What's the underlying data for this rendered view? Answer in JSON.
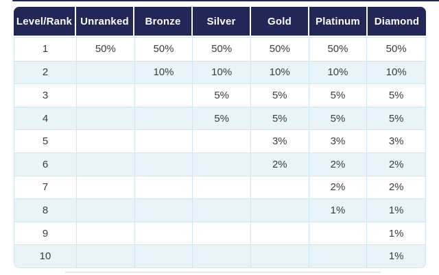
{
  "colors": {
    "header_bg": "#212757",
    "header_text": "#ffffff",
    "row_even_bg": "#ffffff",
    "row_odd_bg": "#e9f4f9",
    "grid_border": "#cde6f1",
    "cell_text": "#3b3b3b",
    "top_strip": "#212757",
    "bottom_artifact": "#e3e3e3"
  },
  "chart_data": {
    "type": "table",
    "columns": [
      "Level/Rank",
      "Unranked",
      "Bronze",
      "Silver",
      "Gold",
      "Platinum",
      "Diamond"
    ],
    "rows": [
      [
        "1",
        "50%",
        "50%",
        "50%",
        "50%",
        "50%",
        "50%"
      ],
      [
        "2",
        "",
        "10%",
        "10%",
        "10%",
        "10%",
        "10%"
      ],
      [
        "3",
        "",
        "",
        "5%",
        "5%",
        "5%",
        "5%"
      ],
      [
        "4",
        "",
        "",
        "5%",
        "5%",
        "5%",
        "5%"
      ],
      [
        "5",
        "",
        "",
        "",
        "3%",
        "3%",
        "3%"
      ],
      [
        "6",
        "",
        "",
        "",
        "2%",
        "2%",
        "2%"
      ],
      [
        "7",
        "",
        "",
        "",
        "",
        "2%",
        "2%"
      ],
      [
        "8",
        "",
        "",
        "",
        "",
        "1%",
        "1%"
      ],
      [
        "9",
        "",
        "",
        "",
        "",
        "",
        "1%"
      ],
      [
        "10",
        "",
        "",
        "",
        "",
        "",
        "1%"
      ]
    ]
  }
}
